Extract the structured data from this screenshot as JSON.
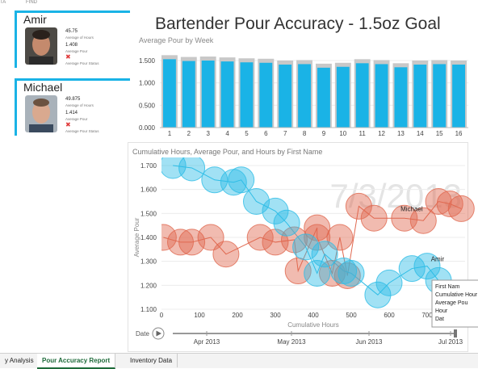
{
  "topbar": {
    "left": "TA",
    "find": "FIND"
  },
  "cards": [
    {
      "name": "Amir",
      "hours": "45.75",
      "hours_label": "Average of Hours",
      "pour": "1.408",
      "pour_label": "Average Pour",
      "status_label": "Average Pour Status",
      "status_icon": "x-icon"
    },
    {
      "name": "Michael",
      "hours": "49.875",
      "hours_label": "Average of Hours",
      "pour": "1.414",
      "pour_label": "Average Pour",
      "status_label": "Average Pour Status",
      "status_icon": "x-icon"
    }
  ],
  "report": {
    "title": "Bartender Pour Accuracy  -  1.5oz Goal"
  },
  "chart_data": [
    {
      "type": "bar",
      "title": "Average Pour by Week",
      "categories": [
        "1",
        "2",
        "3",
        "4",
        "5",
        "6",
        "7",
        "8",
        "9",
        "10",
        "11",
        "12",
        "13",
        "14",
        "15",
        "16"
      ],
      "values": [
        1.53,
        1.49,
        1.5,
        1.48,
        1.46,
        1.45,
        1.41,
        1.42,
        1.34,
        1.36,
        1.44,
        1.42,
        1.35,
        1.41,
        1.42,
        1.41
      ],
      "ylim": [
        0,
        1.5
      ],
      "yticks": [
        "0.000",
        "0.500",
        "1.000",
        "1.500"
      ],
      "colors": {
        "bar": "#1ab3e6",
        "shadow": "#c8c8c8"
      }
    },
    {
      "type": "scatter",
      "title": "Cumulative Hours, Average Pour, and Hours by First Name",
      "xlabel": "Cumulative Hours",
      "ylabel": "Average Pour",
      "xlim": [
        0,
        800
      ],
      "ylim": [
        1.1,
        1.7
      ],
      "xticks": [
        "0",
        "100",
        "200",
        "300",
        "400",
        "500",
        "600",
        "700"
      ],
      "yticks": [
        "1.100",
        "1.200",
        "1.300",
        "1.400",
        "1.500",
        "1.600",
        "1.700"
      ],
      "watermark": "7/3/2013",
      "series": [
        {
          "name": "Michael",
          "color": "#e0684f",
          "points": [
            [
              5,
              1.4
            ],
            [
              50,
              1.38
            ],
            [
              80,
              1.38
            ],
            [
              130,
              1.4
            ],
            [
              170,
              1.33
            ],
            [
              260,
              1.4
            ],
            [
              300,
              1.38
            ],
            [
              350,
              1.39
            ],
            [
              360,
              1.26
            ],
            [
              410,
              1.44
            ],
            [
              410,
              1.4
            ],
            [
              450,
              1.25
            ],
            [
              470,
              1.4
            ],
            [
              490,
              1.24
            ],
            [
              520,
              1.53
            ],
            [
              560,
              1.48
            ],
            [
              640,
              1.48
            ],
            [
              690,
              1.47
            ],
            [
              730,
              1.55
            ],
            [
              760,
              1.54
            ],
            [
              790,
              1.52
            ]
          ]
        },
        {
          "name": "Amir",
          "color": "#2ebde6",
          "points": [
            [
              30,
              1.7
            ],
            [
              80,
              1.69
            ],
            [
              140,
              1.64
            ],
            [
              190,
              1.63
            ],
            [
              210,
              1.64
            ],
            [
              250,
              1.55
            ],
            [
              300,
              1.51
            ],
            [
              330,
              1.46
            ],
            [
              380,
              1.36
            ],
            [
              410,
              1.25
            ],
            [
              430,
              1.33
            ],
            [
              480,
              1.26
            ],
            [
              500,
              1.25
            ],
            [
              570,
              1.16
            ],
            [
              600,
              1.21
            ],
            [
              660,
              1.27
            ],
            [
              700,
              1.28
            ],
            [
              730,
              1.22
            ]
          ]
        }
      ],
      "labels": [
        {
          "text": "Michael"
        },
        {
          "text": "Amir"
        }
      ],
      "play_axis": {
        "label": "Date",
        "months": [
          "Apr 2013",
          "May 2013",
          "Jun 2013",
          "Jul 2013"
        ]
      },
      "tooltip_lines": [
        "First Nam",
        "Cumulative Hour",
        "Average Pou",
        "Hour",
        "Dat"
      ]
    }
  ],
  "sheet_tabs": [
    {
      "label": "y Analysis",
      "active": false
    },
    {
      "label": "Pour Accuracy Report",
      "active": true
    },
    {
      "label": "Inventory Data",
      "active": false
    }
  ]
}
